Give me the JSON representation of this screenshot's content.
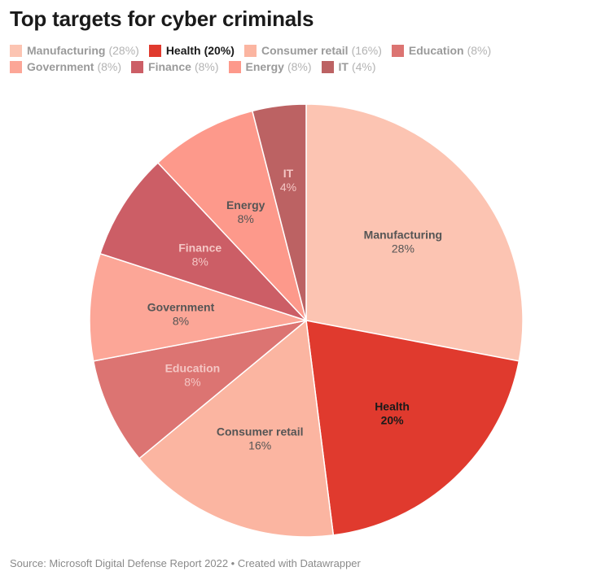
{
  "title": "Top targets for cyber criminals",
  "source": "Source: Microsoft Digital Defense Report 2022 • Created with Datawrapper",
  "chart_data": {
    "type": "pie",
    "title": "Top targets for cyber criminals",
    "legend_placement": "top",
    "slices": [
      {
        "name": "Manufacturing",
        "value": 28,
        "label": "28%",
        "legend_value": "(28%)",
        "color": "#fcc4b2",
        "text_color": "#555555"
      },
      {
        "name": "Health",
        "value": 20,
        "label": "20%",
        "legend_value": "(20%)",
        "color": "#e03a2e",
        "text_color": "#1a1a1a",
        "active": true
      },
      {
        "name": "Consumer retail",
        "value": 16,
        "label": "16%",
        "legend_value": "(16%)",
        "color": "#fbb5a1",
        "text_color": "#555555"
      },
      {
        "name": "Education",
        "value": 8,
        "label": "8%",
        "legend_value": "(8%)",
        "color": "#dc7472",
        "text_color": "#f4c6c4"
      },
      {
        "name": "Government",
        "value": 8,
        "label": "8%",
        "legend_value": "(8%)",
        "color": "#fca697",
        "text_color": "#555555"
      },
      {
        "name": "Finance",
        "value": 8,
        "label": "8%",
        "legend_value": "(8%)",
        "color": "#cc5e66",
        "text_color": "#f4c6c4"
      },
      {
        "name": "Energy",
        "value": 8,
        "label": "8%",
        "legend_value": "(8%)",
        "color": "#fd998b",
        "text_color": "#555555"
      },
      {
        "name": "IT",
        "value": 4,
        "label": "4%",
        "legend_value": "(4%)",
        "color": "#bc6263",
        "text_color": "#f4c6c4"
      }
    ]
  }
}
